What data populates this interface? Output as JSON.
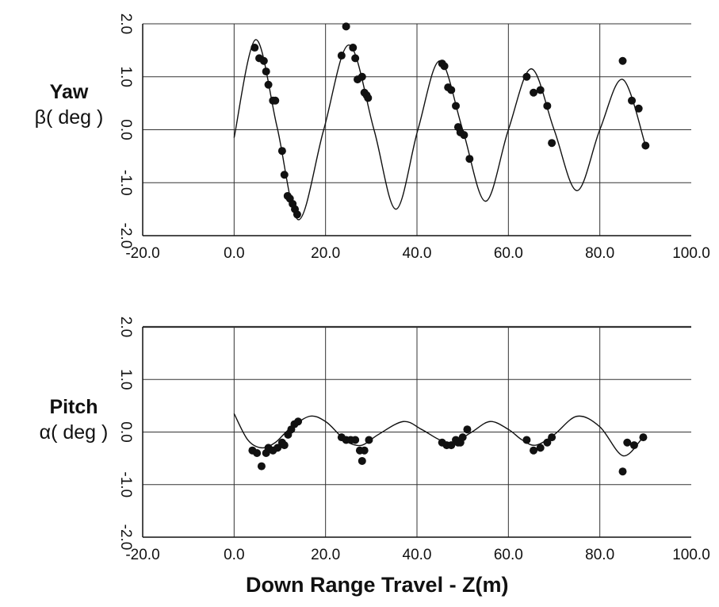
{
  "chart_data": [
    {
      "type": "scatter",
      "panel": "yaw",
      "ylabel_line1": "Yaw",
      "ylabel_line2": "β( deg )",
      "xlabel": "",
      "xlim": [
        -20,
        100
      ],
      "ylim": [
        -2.0,
        2.0
      ],
      "x_ticks": [
        "-20.0",
        "0.0",
        "20.0",
        "40.0",
        "60.0",
        "80.0",
        "100.0"
      ],
      "y_ticks": [
        "-2.0",
        "-1.0",
        "0.0",
        "1.0",
        "2.0"
      ],
      "grid": true,
      "series": [
        {
          "kind": "points",
          "x": [
            4.5,
            5.5,
            6.5,
            7,
            7.5,
            8.5,
            9,
            10.5,
            11,
            11.7,
            12.2,
            12.8,
            13.3,
            13.8,
            23.5,
            24.5,
            26,
            26.5,
            27,
            28,
            28.5,
            29,
            29.3,
            45.5,
            46,
            46.8,
            47.5,
            48.5,
            49,
            49.5,
            50.3,
            51.5,
            64,
            65.5,
            67,
            68.5,
            69.5,
            85,
            87,
            88.5,
            90
          ],
          "y": [
            1.55,
            1.35,
            1.3,
            1.1,
            0.85,
            0.55,
            0.55,
            -0.4,
            -0.85,
            -1.25,
            -1.3,
            -1.4,
            -1.5,
            -1.6,
            1.4,
            1.95,
            1.55,
            1.35,
            0.95,
            1.0,
            0.7,
            0.65,
            0.6,
            1.25,
            1.2,
            0.8,
            0.75,
            0.45,
            0.05,
            -0.05,
            -0.1,
            -0.55,
            1.0,
            0.7,
            0.75,
            0.45,
            -0.25,
            1.3,
            0.55,
            0.4,
            -0.3
          ]
        },
        {
          "kind": "fit",
          "x": [
            0,
            4.7,
            9.4,
            14.1,
            19.6,
            25.1,
            30.6,
            35.4,
            40.2,
            45,
            50,
            55,
            60,
            65,
            70,
            75,
            80,
            85,
            90
          ],
          "y": [
            -0.15,
            1.7,
            0.05,
            -1.7,
            0.0,
            1.6,
            0.0,
            -1.5,
            0.0,
            1.3,
            0.0,
            -1.35,
            0.0,
            1.15,
            0.0,
            -1.15,
            0.0,
            0.95,
            -0.3
          ]
        }
      ]
    },
    {
      "type": "scatter",
      "panel": "pitch",
      "ylabel_line1": "Pitch",
      "ylabel_line2": "α( deg )",
      "xlabel": "Down Range Travel - Z(m)",
      "xlim": [
        -20,
        100
      ],
      "ylim": [
        -2.0,
        2.0
      ],
      "x_ticks": [
        "-20.0",
        "0.0",
        "20.0",
        "40.0",
        "60.0",
        "80.0",
        "100.0"
      ],
      "y_ticks": [
        "-2.0",
        "-1.0",
        "0.0",
        "1.0",
        "2.0"
      ],
      "grid": true,
      "series": [
        {
          "kind": "points",
          "x": [
            4,
            5,
            6,
            7,
            7.5,
            8.5,
            9.5,
            10.5,
            11,
            11.8,
            12.5,
            13.2,
            14,
            23.5,
            24.5,
            25.5,
            26.5,
            27.5,
            28,
            28.5,
            29.5,
            45.5,
            46.5,
            47.5,
            48.5,
            49,
            49.5,
            50,
            51,
            64,
            65.5,
            67,
            68.5,
            69.5,
            85,
            86,
            87.5,
            89.5
          ],
          "y": [
            -0.35,
            -0.4,
            -0.65,
            -0.4,
            -0.3,
            -0.35,
            -0.3,
            -0.2,
            -0.25,
            -0.05,
            0.05,
            0.15,
            0.2,
            -0.1,
            -0.15,
            -0.15,
            -0.15,
            -0.35,
            -0.55,
            -0.35,
            -0.15,
            -0.2,
            -0.25,
            -0.25,
            -0.15,
            -0.2,
            -0.2,
            -0.1,
            0.05,
            -0.15,
            -0.35,
            -0.3,
            -0.2,
            -0.1,
            -0.75,
            -0.2,
            -0.25,
            -0.1
          ]
        },
        {
          "kind": "fit",
          "x": [
            0,
            3,
            6,
            9,
            12,
            16.5,
            20,
            23,
            25,
            28,
            31.5,
            37,
            41,
            45,
            48,
            52,
            56,
            60,
            63,
            66,
            70,
            75,
            80,
            85,
            89
          ],
          "y": [
            0.35,
            -0.15,
            -0.3,
            -0.2,
            0.05,
            0.3,
            0.2,
            -0.05,
            -0.2,
            -0.25,
            -0.05,
            0.2,
            0.05,
            -0.15,
            -0.2,
            0.0,
            0.2,
            0.05,
            -0.15,
            -0.25,
            -0.05,
            0.3,
            0.1,
            -0.45,
            -0.15
          ]
        }
      ]
    }
  ]
}
